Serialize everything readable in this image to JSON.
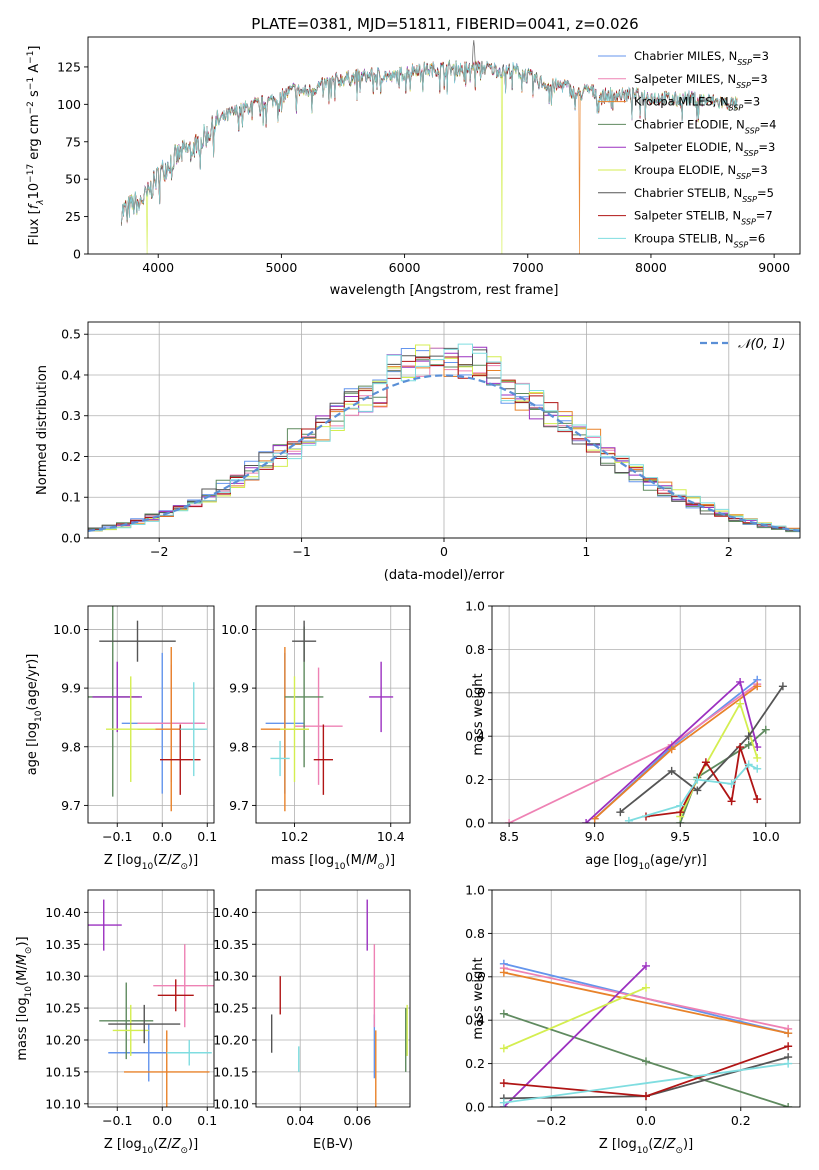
{
  "title": "PLATE=0381, MJD=51811, FIBERID=0041, z=0.026",
  "colors": {
    "Chabrier MILES": "#6495ed",
    "Salpeter MILES": "#ee82b4",
    "Kroupa MILES": "#e8822a",
    "Chabrier ELODIE": "#5f8a5f",
    "Salpeter ELODIE": "#9b30c0",
    "Kroupa ELODIE": "#d4ee50",
    "Chabrier STELIB": "#555555",
    "Salpeter STELIB": "#b01515",
    "Kroupa STELIB": "#7fdde0",
    "normal": "#5a8fd6"
  },
  "chart_data": [
    {
      "id": "spectrum",
      "type": "line",
      "xlabel": "wavelength [Angstrom, rest frame]",
      "ylabel": "Flux [f_λ10^-17 erg cm^-2 s^-1 A^-1]",
      "xlim": [
        3430,
        9210
      ],
      "ylim": [
        0,
        145
      ],
      "xticks": [
        4000,
        5000,
        6000,
        7000,
        8000,
        9000
      ],
      "yticks": [
        0,
        25,
        50,
        75,
        100,
        125
      ],
      "legend_position": "top-right",
      "legend": [
        {
          "label": "Chabrier MILES, N",
          "sub": "SSP",
          "suffix": "=3"
        },
        {
          "label": "Salpeter MILES, N",
          "sub": "SSP",
          "suffix": "=3"
        },
        {
          "label": "Kroupa MILES, N",
          "sub": "SSP",
          "suffix": "=3"
        },
        {
          "label": "Chabrier ELODIE, N",
          "sub": "SSP",
          "suffix": "=4"
        },
        {
          "label": "Salpeter ELODIE, N",
          "sub": "SSP",
          "suffix": "=3"
        },
        {
          "label": "Kroupa ELODIE, N",
          "sub": "SSP",
          "suffix": "=3"
        },
        {
          "label": "Chabrier STELIB, N",
          "sub": "SSP",
          "suffix": "=5"
        },
        {
          "label": "Salpeter STELIB, N",
          "sub": "SSP",
          "suffix": "=7"
        },
        {
          "label": "Kroupa STELIB, N",
          "sub": "SSP",
          "suffix": "=6"
        }
      ],
      "continuum": [
        [
          3700,
          28
        ],
        [
          3800,
          33
        ],
        [
          3900,
          38
        ],
        [
          4000,
          52
        ],
        [
          4100,
          62
        ],
        [
          4200,
          68
        ],
        [
          4300,
          72
        ],
        [
          4400,
          80
        ],
        [
          4500,
          90
        ],
        [
          4600,
          94
        ],
        [
          4700,
          97
        ],
        [
          4800,
          100
        ],
        [
          4900,
          102
        ],
        [
          5000,
          105
        ],
        [
          5100,
          110
        ],
        [
          5200,
          108
        ],
        [
          5300,
          112
        ],
        [
          5400,
          115
        ],
        [
          5500,
          117
        ],
        [
          5600,
          118
        ],
        [
          5700,
          119
        ],
        [
          5800,
          120
        ],
        [
          5900,
          118
        ],
        [
          6000,
          121
        ],
        [
          6100,
          124
        ],
        [
          6200,
          123
        ],
        [
          6300,
          124
        ],
        [
          6400,
          124
        ],
        [
          6500,
          124
        ],
        [
          6600,
          125
        ],
        [
          6700,
          124
        ],
        [
          6800,
          122
        ],
        [
          6900,
          123
        ],
        [
          7000,
          119
        ],
        [
          7100,
          115
        ],
        [
          7200,
          112
        ],
        [
          7300,
          113
        ],
        [
          7400,
          106
        ],
        [
          7500,
          110
        ],
        [
          7600,
          105
        ],
        [
          7700,
          107
        ],
        [
          7800,
          106
        ],
        [
          7900,
          106
        ],
        [
          8000,
          105
        ],
        [
          8100,
          104
        ],
        [
          8200,
          103
        ],
        [
          8300,
          104
        ],
        [
          8400,
          103
        ],
        [
          8500,
          102
        ],
        [
          8600,
          101
        ],
        [
          8700,
          100
        ]
      ],
      "drops": [
        [
          3910,
          "Kroupa ELODIE"
        ],
        [
          6790,
          "Kroupa ELODIE"
        ],
        [
          7420,
          "Kroupa MILES"
        ]
      ]
    },
    {
      "id": "residuals",
      "type": "histogram",
      "xlabel": "(data-model)/error",
      "ylabel": "Normed distribution",
      "xlim": [
        -2.5,
        2.5
      ],
      "ylim": [
        0,
        0.53
      ],
      "xticks": [
        -2,
        -1,
        0,
        1,
        2
      ],
      "yticks": [
        0.0,
        0.1,
        0.2,
        0.3,
        0.4,
        0.5
      ],
      "legend": "𝒩(0, 1)",
      "bin_width": 0.1
    },
    {
      "id": "age-vs-z",
      "type": "errorbar",
      "xlabel": "Z [log10(Z/Z⊙)]",
      "ylabel": "age [log10(age/yr)]",
      "xlim": [
        -0.165,
        0.115
      ],
      "ylim": [
        9.67,
        10.04
      ],
      "xticks": [
        -0.1,
        0.0,
        0.1
      ],
      "yticks": [
        9.7,
        9.8,
        9.9,
        10.0
      ],
      "points": [
        {
          "model": "Chabrier MILES",
          "x": 0.0,
          "xe": 0.09,
          "y": 9.84,
          "ye": 0.12
        },
        {
          "model": "Salpeter MILES",
          "x": 0.02,
          "xe": 0.075,
          "y": 9.84,
          "ye": 0.1
        },
        {
          "model": "Kroupa MILES",
          "x": 0.02,
          "xe": 0.075,
          "y": 9.83,
          "ye": 0.14
        },
        {
          "model": "Chabrier ELODIE",
          "x": -0.11,
          "xe": 0.06,
          "y": 9.885,
          "ye": 0.17
        },
        {
          "model": "Salpeter ELODIE",
          "x": -0.1,
          "xe": 0.055,
          "y": 9.885,
          "ye": 0.06
        },
        {
          "model": "Kroupa ELODIE",
          "x": -0.07,
          "xe": 0.055,
          "y": 9.83,
          "ye": 0.09
        },
        {
          "model": "Chabrier STELIB",
          "x": -0.055,
          "xe": 0.085,
          "y": 9.98,
          "ye": 0.035
        },
        {
          "model": "Salpeter STELIB",
          "x": 0.04,
          "xe": 0.045,
          "y": 9.778,
          "ye": 0.06
        },
        {
          "model": "Kroupa STELIB",
          "x": 0.07,
          "xe": 0.03,
          "y": 9.83,
          "ye": 0.08
        }
      ]
    },
    {
      "id": "age-vs-mass",
      "type": "errorbar",
      "xlabel": "mass [log10(M/M⊙)]",
      "xlim": [
        10.12,
        10.44
      ],
      "ylim": [
        9.67,
        10.04
      ],
      "xticks": [
        10.2,
        10.4
      ],
      "yticks": [
        9.7,
        9.8,
        9.9,
        10.0
      ],
      "points": [
        {
          "model": "Chabrier MILES",
          "x": 10.18,
          "xe": 0.04,
          "y": 9.84,
          "ye": 0.12
        },
        {
          "model": "Salpeter MILES",
          "x": 10.25,
          "xe": 0.05,
          "y": 9.835,
          "ye": 0.1
        },
        {
          "model": "Kroupa MILES",
          "x": 10.18,
          "xe": 0.05,
          "y": 9.83,
          "ye": 0.14
        },
        {
          "model": "Chabrier ELODIE",
          "x": 10.22,
          "xe": 0.04,
          "y": 9.885,
          "ye": 0.12
        },
        {
          "model": "Salpeter ELODIE",
          "x": 10.38,
          "xe": 0.025,
          "y": 9.885,
          "ye": 0.06
        },
        {
          "model": "Kroupa ELODIE",
          "x": 10.2,
          "xe": 0.03,
          "y": 9.83,
          "ye": 0.09
        },
        {
          "model": "Chabrier STELIB",
          "x": 10.22,
          "xe": 0.025,
          "y": 9.98,
          "ye": 0.035
        },
        {
          "model": "Salpeter STELIB",
          "x": 10.26,
          "xe": 0.02,
          "y": 9.778,
          "ye": 0.06
        },
        {
          "model": "Kroupa STELIB",
          "x": 10.17,
          "xe": 0.02,
          "y": 9.78,
          "ye": 0.03
        }
      ]
    },
    {
      "id": "weight-vs-age",
      "type": "line",
      "xlabel": "age [log10(age/yr)]",
      "ylabel": "mass weight",
      "xlim": [
        8.4,
        10.2
      ],
      "ylim": [
        0,
        1
      ],
      "xticks": [
        8.5,
        9.0,
        9.5,
        10.0
      ],
      "yticks": [
        0.0,
        0.2,
        0.4,
        0.6,
        0.8,
        1.0
      ],
      "series": [
        {
          "model": "Chabrier MILES",
          "x": [
            9.0,
            9.45,
            9.95
          ],
          "y": [
            0.02,
            0.35,
            0.66
          ]
        },
        {
          "model": "Salpeter MILES",
          "x": [
            8.5,
            9.45,
            9.95
          ],
          "y": [
            0.0,
            0.36,
            0.64
          ]
        },
        {
          "model": "Kroupa MILES",
          "x": [
            9.0,
            9.45,
            9.95
          ],
          "y": [
            0.02,
            0.34,
            0.63
          ]
        },
        {
          "model": "Chabrier ELODIE",
          "x": [
            9.5,
            9.6,
            9.9,
            10.0
          ],
          "y": [
            0.0,
            0.21,
            0.36,
            0.43
          ]
        },
        {
          "model": "Salpeter ELODIE",
          "x": [
            8.95,
            9.85,
            9.95
          ],
          "y": [
            0.0,
            0.65,
            0.35
          ]
        },
        {
          "model": "Kroupa ELODIE",
          "x": [
            9.5,
            9.6,
            9.85,
            9.95
          ],
          "y": [
            0.03,
            0.2,
            0.55,
            0.3
          ]
        },
        {
          "model": "Chabrier STELIB",
          "x": [
            9.15,
            9.45,
            9.6,
            9.9,
            10.1
          ],
          "y": [
            0.05,
            0.24,
            0.15,
            0.4,
            0.63
          ]
        },
        {
          "model": "Salpeter STELIB",
          "x": [
            9.3,
            9.5,
            9.65,
            9.8,
            9.85,
            9.95
          ],
          "y": [
            0.03,
            0.05,
            0.28,
            0.1,
            0.35,
            0.11
          ]
        },
        {
          "model": "Kroupa STELIB",
          "x": [
            9.2,
            9.5,
            9.6,
            9.8,
            9.9,
            9.95
          ],
          "y": [
            0.01,
            0.08,
            0.2,
            0.18,
            0.27,
            0.25
          ]
        }
      ]
    },
    {
      "id": "mass-vs-z",
      "type": "errorbar",
      "xlabel": "Z [log10(Z/Z⊙)]",
      "ylabel": "mass [log10(M/M⊙)]",
      "xlim": [
        -0.165,
        0.115
      ],
      "ylim": [
        10.095,
        10.435
      ],
      "xticks": [
        -0.1,
        0.0,
        0.1
      ],
      "yticks": [
        10.1,
        10.15,
        10.2,
        10.25,
        10.3,
        10.35,
        10.4
      ],
      "points": [
        {
          "model": "Chabrier MILES",
          "x": -0.03,
          "xe": 0.09,
          "y": 10.18,
          "ye": 0.045
        },
        {
          "model": "Salpeter MILES",
          "x": 0.05,
          "xe": 0.07,
          "y": 10.285,
          "ye": 0.065
        },
        {
          "model": "Kroupa MILES",
          "x": 0.01,
          "xe": 0.095,
          "y": 10.15,
          "ye": 0.065
        },
        {
          "model": "Chabrier ELODIE",
          "x": -0.08,
          "xe": 0.06,
          "y": 10.23,
          "ye": 0.06
        },
        {
          "model": "Salpeter ELODIE",
          "x": -0.13,
          "xe": 0.04,
          "y": 10.38,
          "ye": 0.04
        },
        {
          "model": "Kroupa ELODIE",
          "x": -0.07,
          "xe": 0.04,
          "y": 10.215,
          "ye": 0.04
        },
        {
          "model": "Chabrier STELIB",
          "x": -0.04,
          "xe": 0.08,
          "y": 10.225,
          "ye": 0.03
        },
        {
          "model": "Salpeter STELIB",
          "x": 0.03,
          "xe": 0.04,
          "y": 10.27,
          "ye": 0.025
        },
        {
          "model": "Kroupa STELIB",
          "x": 0.06,
          "xe": 0.05,
          "y": 10.18,
          "ye": 0.02
        }
      ]
    },
    {
      "id": "mass-vs-ebv",
      "type": "errorbar",
      "xlabel": "E(B-V)",
      "xlim": [
        0.0245,
        0.0785
      ],
      "ylim": [
        10.095,
        10.435
      ],
      "xticks": [
        0.04,
        0.06
      ],
      "yticks": [
        10.1,
        10.15,
        10.2,
        10.25,
        10.3,
        10.35,
        10.4
      ],
      "points": [
        {
          "model": "Chabrier MILES",
          "x": 0.066,
          "xe": 0,
          "y": 10.19,
          "ye": 0.05
        },
        {
          "model": "Salpeter MILES",
          "x": 0.066,
          "xe": 0,
          "y": 10.285,
          "ye": 0.065
        },
        {
          "model": "Kroupa MILES",
          "x": 0.0665,
          "xe": 0,
          "y": 10.15,
          "ye": 0.065
        },
        {
          "model": "Chabrier ELODIE",
          "x": 0.077,
          "xe": 0,
          "y": 10.2,
          "ye": 0.05
        },
        {
          "model": "Salpeter ELODIE",
          "x": 0.0635,
          "xe": 0,
          "y": 10.38,
          "ye": 0.04
        },
        {
          "model": "Kroupa ELODIE",
          "x": 0.0775,
          "xe": 0,
          "y": 10.215,
          "ye": 0.04
        },
        {
          "model": "Chabrier STELIB",
          "x": 0.03,
          "xe": 0,
          "y": 10.21,
          "ye": 0.03
        },
        {
          "model": "Salpeter STELIB",
          "x": 0.033,
          "xe": 0,
          "y": 10.27,
          "ye": 0.03
        },
        {
          "model": "Kroupa STELIB",
          "x": 0.0395,
          "xe": 0,
          "y": 10.17,
          "ye": 0.02
        }
      ]
    },
    {
      "id": "weight-vs-z",
      "type": "line",
      "xlabel": "Z [log10(Z/Z⊙)]",
      "ylabel": "mass weight",
      "xlim": [
        -0.325,
        0.325
      ],
      "ylim": [
        0,
        1
      ],
      "xticks": [
        -0.2,
        0.0,
        0.2
      ],
      "yticks": [
        0.0,
        0.2,
        0.4,
        0.6,
        0.8,
        1.0
      ],
      "series": [
        {
          "model": "Chabrier MILES",
          "x": [
            -0.3,
            0.3
          ],
          "y": [
            0.66,
            0.34
          ]
        },
        {
          "model": "Salpeter MILES",
          "x": [
            -0.3,
            0.3
          ],
          "y": [
            0.64,
            0.36
          ]
        },
        {
          "model": "Kroupa MILES",
          "x": [
            -0.3,
            0.3
          ],
          "y": [
            0.62,
            0.34
          ]
        },
        {
          "model": "Chabrier ELODIE",
          "x": [
            -0.3,
            0.0,
            0.3
          ],
          "y": [
            0.43,
            0.21,
            0.0
          ]
        },
        {
          "model": "Salpeter ELODIE",
          "x": [
            -0.3,
            0.0
          ],
          "y": [
            0.0,
            0.65
          ]
        },
        {
          "model": "Kroupa ELODIE",
          "x": [
            -0.3,
            0.0
          ],
          "y": [
            0.27,
            0.55
          ]
        },
        {
          "model": "Chabrier STELIB",
          "x": [
            -0.3,
            0.0,
            0.3
          ],
          "y": [
            0.04,
            0.05,
            0.23
          ]
        },
        {
          "model": "Salpeter STELIB",
          "x": [
            -0.3,
            0.0,
            0.3
          ],
          "y": [
            0.11,
            0.05,
            0.28
          ]
        },
        {
          "model": "Kroupa STELIB",
          "x": [
            -0.3,
            0.3
          ],
          "y": [
            0.02,
            0.2
          ]
        }
      ]
    }
  ]
}
